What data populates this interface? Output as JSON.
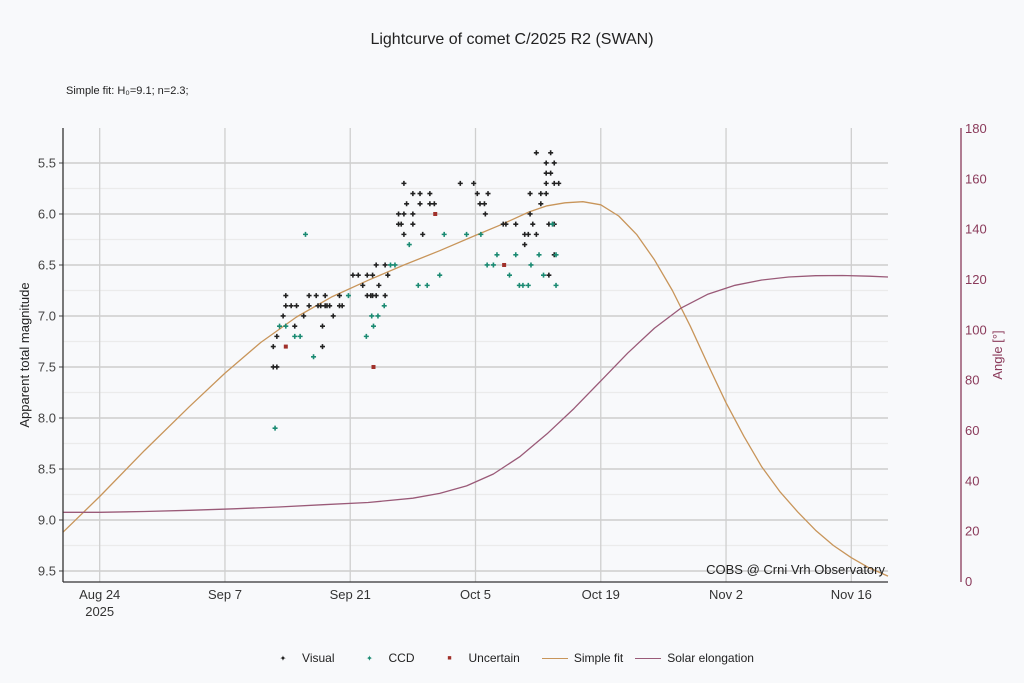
{
  "title": "Lightcurve of comet C/2025 R2 (SWAN)",
  "fit_note": "Simple fit: H₀=9.1; n=2.3;",
  "credit": "COBS @ Crni Vrh Observatory",
  "chart_data": {
    "type": "scatter",
    "title": "Lightcurve of comet C/2025 R2 (SWAN)",
    "xlabel": "",
    "ylabel": "Apparent total magnitude",
    "y2label": "Angle [°]",
    "x_reference_date": "2025-08-24",
    "x_unit": "days since 2025-08-24",
    "xlim": [
      -4.1,
      88.1
    ],
    "ylim": [
      9.608,
      5.157
    ],
    "y_inverted": true,
    "y2lim": [
      0,
      180
    ],
    "x_ticks": [
      {
        "day": 0,
        "label": "Aug 24",
        "sublabel": "2025"
      },
      {
        "day": 14,
        "label": "Sep 7"
      },
      {
        "day": 28,
        "label": "Sep 21"
      },
      {
        "day": 42,
        "label": "Oct 5"
      },
      {
        "day": 56,
        "label": "Oct 19"
      },
      {
        "day": 70,
        "label": "Nov 2"
      },
      {
        "day": 84,
        "label": "Nov 16"
      }
    ],
    "y_ticks": [
      5.5,
      6.0,
      6.5,
      7.0,
      7.5,
      8.0,
      8.5,
      9.0,
      9.5
    ],
    "y_tick_labels": [
      "5.5",
      "6.0",
      "6.5",
      "7.0",
      "7.5",
      "8.0",
      "8.5",
      "9.0",
      "9.5"
    ],
    "y2_ticks": [
      0,
      20,
      40,
      60,
      80,
      100,
      120,
      140,
      160,
      180
    ],
    "grid": true,
    "legend_position": "bottom-center",
    "legend": [
      {
        "key": "visual",
        "label": "Visual",
        "kind": "marker",
        "color": "#222222"
      },
      {
        "key": "ccd",
        "label": "CCD",
        "kind": "marker",
        "color": "#1a8a72"
      },
      {
        "key": "uncertain",
        "label": "Uncertain",
        "kind": "square",
        "color": "#a0302a"
      },
      {
        "key": "fit",
        "label": "Simple fit",
        "kind": "line",
        "color": "#c8955a"
      },
      {
        "key": "elong",
        "label": "Solar elongation",
        "kind": "line",
        "color": "#9a5a78"
      }
    ],
    "series": [
      {
        "name": "Visual",
        "key": "visual",
        "points": [
          [
            19.4,
            7.3
          ],
          [
            19.4,
            7.5
          ],
          [
            19.8,
            7.2
          ],
          [
            19.8,
            7.5
          ],
          [
            20.5,
            7.0
          ],
          [
            20.8,
            6.8
          ],
          [
            20.8,
            6.9
          ],
          [
            21.4,
            6.9
          ],
          [
            21.8,
            7.1
          ],
          [
            22.0,
            6.9
          ],
          [
            22.8,
            7.0
          ],
          [
            23.4,
            6.8
          ],
          [
            23.4,
            6.9
          ],
          [
            24.2,
            6.8
          ],
          [
            24.4,
            6.9
          ],
          [
            24.7,
            6.9
          ],
          [
            24.9,
            7.1
          ],
          [
            24.9,
            7.3
          ],
          [
            25.2,
            6.8
          ],
          [
            25.2,
            6.9
          ],
          [
            25.4,
            6.9
          ],
          [
            25.7,
            6.9
          ],
          [
            26.1,
            7.0
          ],
          [
            26.8,
            6.8
          ],
          [
            26.8,
            6.9
          ],
          [
            27.1,
            6.9
          ],
          [
            28.3,
            6.6
          ],
          [
            28.9,
            6.6
          ],
          [
            29.4,
            6.7
          ],
          [
            29.9,
            6.6
          ],
          [
            29.9,
            6.8
          ],
          [
            30.3,
            6.8
          ],
          [
            30.5,
            6.6
          ],
          [
            30.5,
            6.8
          ],
          [
            30.9,
            6.5
          ],
          [
            30.9,
            6.8
          ],
          [
            31.2,
            6.7
          ],
          [
            31.9,
            6.5
          ],
          [
            31.9,
            6.8
          ],
          [
            32.2,
            6.6
          ],
          [
            33.4,
            6.0
          ],
          [
            33.4,
            6.1
          ],
          [
            33.7,
            6.1
          ],
          [
            34.0,
            5.7
          ],
          [
            34.0,
            6.0
          ],
          [
            34.0,
            6.2
          ],
          [
            34.3,
            5.9
          ],
          [
            35.0,
            5.8
          ],
          [
            35.0,
            6.0
          ],
          [
            35.0,
            6.1
          ],
          [
            35.8,
            5.8
          ],
          [
            35.8,
            5.9
          ],
          [
            36.1,
            6.2
          ],
          [
            36.9,
            5.8
          ],
          [
            36.9,
            5.9
          ],
          [
            37.4,
            5.9
          ],
          [
            40.3,
            5.7
          ],
          [
            41.8,
            5.7
          ],
          [
            42.2,
            5.8
          ],
          [
            42.5,
            5.9
          ],
          [
            43.0,
            5.9
          ],
          [
            43.4,
            5.8
          ],
          [
            43.1,
            6.0
          ],
          [
            45.1,
            6.1
          ],
          [
            45.4,
            6.1
          ],
          [
            46.5,
            6.1
          ],
          [
            47.5,
            6.2
          ],
          [
            47.5,
            6.3
          ],
          [
            47.9,
            6.2
          ],
          [
            48.1,
            6.0
          ],
          [
            48.1,
            5.8
          ],
          [
            48.4,
            6.1
          ],
          [
            48.8,
            5.4
          ],
          [
            48.8,
            6.2
          ],
          [
            49.3,
            5.8
          ],
          [
            49.3,
            5.9
          ],
          [
            49.9,
            5.5
          ],
          [
            49.9,
            5.6
          ],
          [
            49.9,
            5.7
          ],
          [
            49.9,
            5.8
          ],
          [
            50.2,
            6.1
          ],
          [
            50.2,
            6.6
          ],
          [
            50.4,
            5.4
          ],
          [
            50.4,
            5.6
          ],
          [
            50.8,
            5.5
          ],
          [
            50.8,
            5.7
          ],
          [
            50.8,
            6.1
          ],
          [
            50.8,
            6.4
          ],
          [
            51.3,
            5.7
          ]
        ]
      },
      {
        "name": "CCD",
        "key": "ccd",
        "points": [
          [
            19.6,
            8.1
          ],
          [
            20.1,
            7.1
          ],
          [
            20.8,
            7.1
          ],
          [
            21.8,
            7.2
          ],
          [
            22.4,
            7.2
          ],
          [
            23.0,
            6.2
          ],
          [
            23.9,
            7.4
          ],
          [
            27.8,
            6.8
          ],
          [
            29.8,
            7.2
          ],
          [
            30.4,
            7.0
          ],
          [
            30.6,
            7.1
          ],
          [
            31.1,
            7.0
          ],
          [
            31.8,
            6.9
          ],
          [
            32.5,
            6.5
          ],
          [
            33.0,
            6.5
          ],
          [
            34.6,
            6.3
          ],
          [
            35.6,
            6.7
          ],
          [
            36.6,
            6.7
          ],
          [
            38.0,
            6.6
          ],
          [
            38.5,
            6.2
          ],
          [
            41.0,
            6.2
          ],
          [
            42.6,
            6.2
          ],
          [
            43.3,
            6.5
          ],
          [
            44.0,
            6.5
          ],
          [
            44.4,
            6.4
          ],
          [
            45.8,
            6.6
          ],
          [
            46.5,
            6.4
          ],
          [
            46.9,
            6.7
          ],
          [
            47.3,
            6.7
          ],
          [
            47.9,
            6.7
          ],
          [
            48.2,
            6.5
          ],
          [
            49.1,
            6.4
          ],
          [
            49.6,
            6.6
          ],
          [
            50.6,
            6.1
          ],
          [
            51.0,
            6.4
          ],
          [
            51.0,
            6.7
          ]
        ]
      },
      {
        "name": "Uncertain",
        "key": "uncertain",
        "points": [
          [
            20.8,
            7.3
          ],
          [
            30.6,
            7.5
          ],
          [
            37.5,
            6.0
          ],
          [
            45.2,
            6.5
          ]
        ]
      },
      {
        "name": "Simple fit",
        "key": "fit",
        "type": "line",
        "points": [
          [
            -4.1,
            9.12
          ],
          [
            0,
            8.77
          ],
          [
            5,
            8.32
          ],
          [
            10,
            7.89
          ],
          [
            14,
            7.56
          ],
          [
            18,
            7.26
          ],
          [
            22,
            7.01
          ],
          [
            26,
            6.81
          ],
          [
            30,
            6.65
          ],
          [
            34,
            6.5
          ],
          [
            38,
            6.36
          ],
          [
            42,
            6.21
          ],
          [
            45,
            6.1
          ],
          [
            48,
            5.98
          ],
          [
            50,
            5.92
          ],
          [
            52,
            5.89
          ],
          [
            54,
            5.88
          ],
          [
            56,
            5.91
          ],
          [
            58,
            6.02
          ],
          [
            60,
            6.2
          ],
          [
            62,
            6.45
          ],
          [
            64,
            6.75
          ],
          [
            66,
            7.1
          ],
          [
            68,
            7.48
          ],
          [
            70,
            7.85
          ],
          [
            72,
            8.18
          ],
          [
            74,
            8.48
          ],
          [
            76,
            8.72
          ],
          [
            78,
            8.92
          ],
          [
            80,
            9.1
          ],
          [
            82,
            9.25
          ],
          [
            84,
            9.37
          ],
          [
            86,
            9.47
          ],
          [
            88.1,
            9.55
          ]
        ]
      },
      {
        "name": "Solar elongation",
        "key": "elong",
        "type": "line",
        "axis": "right",
        "points": [
          [
            -4.1,
            27.3
          ],
          [
            0,
            27.3
          ],
          [
            5,
            27.6
          ],
          [
            10,
            28.1
          ],
          [
            15,
            28.7
          ],
          [
            20,
            29.4
          ],
          [
            25,
            30.3
          ],
          [
            30,
            31.2
          ],
          [
            35,
            32.9
          ],
          [
            38,
            34.8
          ],
          [
            41,
            37.8
          ],
          [
            44,
            42.5
          ],
          [
            47,
            49.5
          ],
          [
            50,
            58.5
          ],
          [
            53,
            68.5
          ],
          [
            56,
            79.5
          ],
          [
            59,
            90.5
          ],
          [
            62,
            100.5
          ],
          [
            65,
            108.5
          ],
          [
            68,
            114.0
          ],
          [
            71,
            117.5
          ],
          [
            74,
            119.6
          ],
          [
            77,
            120.8
          ],
          [
            80,
            121.3
          ],
          [
            83,
            121.4
          ],
          [
            86,
            121.1
          ],
          [
            88.1,
            120.8
          ]
        ]
      }
    ]
  }
}
